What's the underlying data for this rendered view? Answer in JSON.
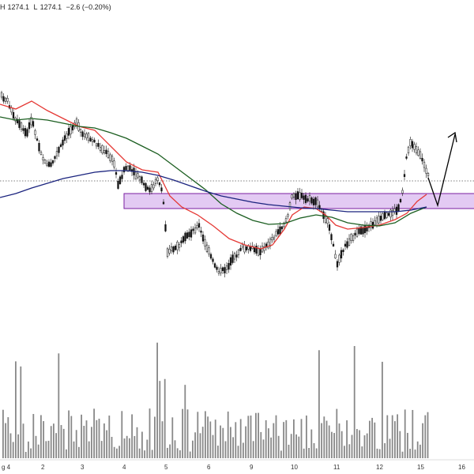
{
  "header": {
    "high_value": "1274.1",
    "low_value": "1274.1",
    "change": "−2.6 (−0.20%)"
  },
  "colors": {
    "ema_fast": "#e53935",
    "ema_mid": "#1b5e20",
    "ema_slow": "#1a237e",
    "zone_fill": "#d9b8ef",
    "zone_stroke": "#7b1fa2",
    "candle": "#111111",
    "volume": "#888888",
    "dotted_line": "#555555"
  },
  "chart_data": {
    "type": "candlestick",
    "x_axis": {
      "tick_labels": [
        "g 4",
        "2",
        "3",
        "4",
        "5",
        "6",
        "9",
        "10",
        "11",
        "12",
        "15",
        "16"
      ]
    },
    "annotations": {
      "zone": "purple rectangle zone",
      "arrow": "projected path: down then up"
    },
    "series": [
      {
        "name": "EMA fast",
        "color_key": "ema_fast"
      },
      {
        "name": "EMA mid",
        "color_key": "ema_mid"
      },
      {
        "name": "EMA slow",
        "color_key": "ema_slow"
      },
      {
        "name": "volume",
        "color_key": "volume"
      }
    ]
  }
}
